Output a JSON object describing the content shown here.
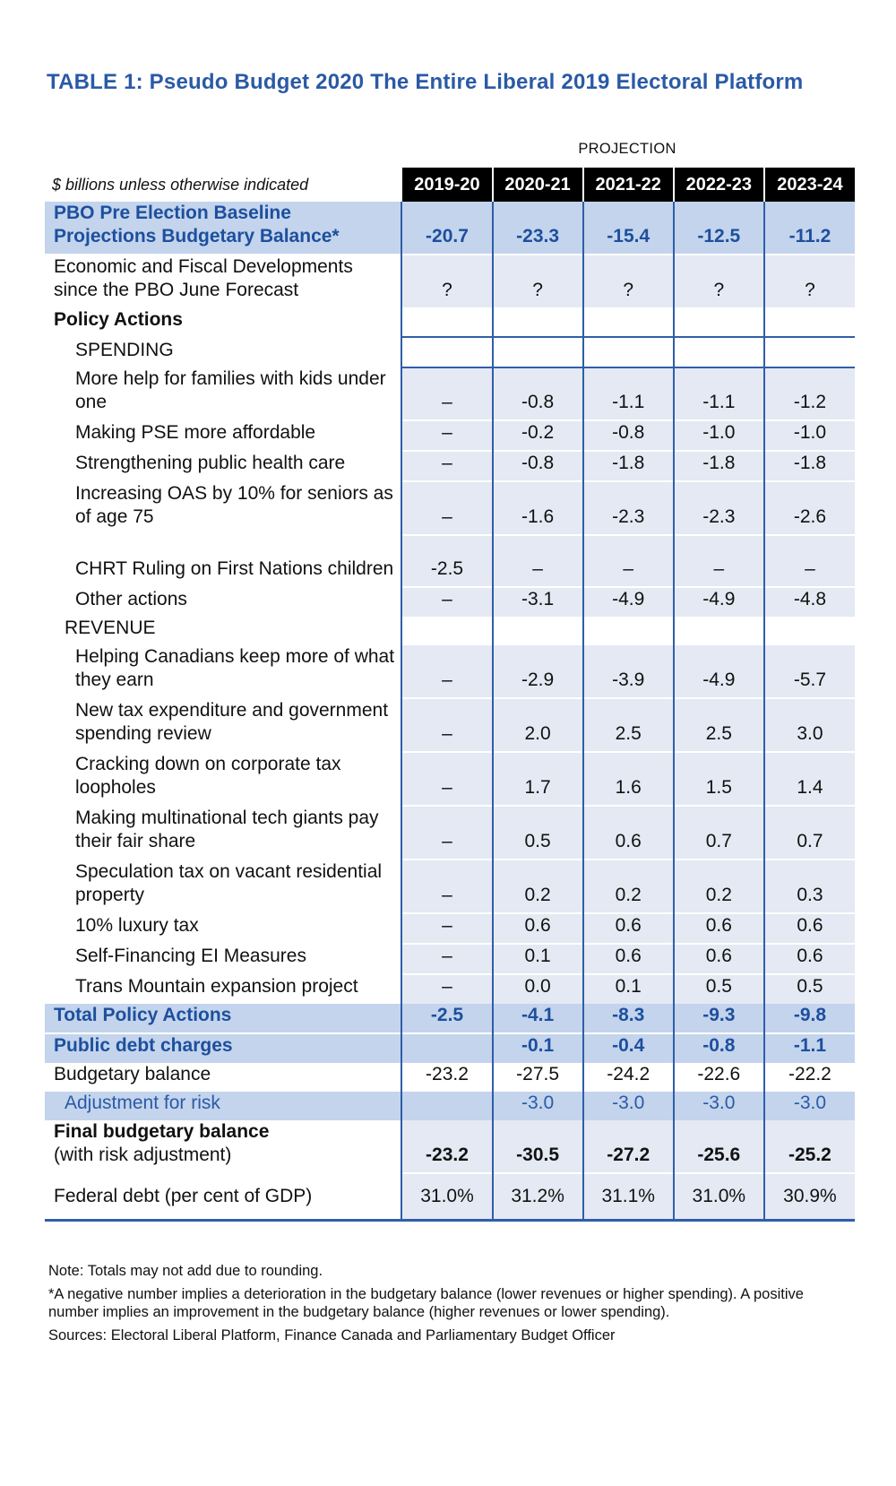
{
  "title": "TABLE 1: Pseudo Budget 2020 The Entire Liberal 2019 Electoral Platform",
  "projection_label": "PROJECTION",
  "units": "$ billions unless otherwise indicated",
  "years": [
    "2019-20",
    "2020-21",
    "2021-22",
    "2022-23",
    "2023-24"
  ],
  "rows": [
    {
      "label": "PBO Pre Election Baseline Projections Budgetary Balance*",
      "values": [
        "-20.7",
        "-23.3",
        "-15.4",
        "-12.5",
        "-11.2"
      ]
    },
    {
      "label": "Economic and Fiscal Developments since the PBO June Forecast",
      "values": [
        "?",
        "?",
        "?",
        "?",
        "?"
      ]
    },
    {
      "label": "Policy Actions",
      "values": [
        "",
        "",
        "",
        "",
        ""
      ]
    },
    {
      "label": "SPENDING",
      "values": [
        "",
        "",
        "",
        "",
        ""
      ]
    },
    {
      "label": "More help for families with kids under one",
      "values": [
        "–",
        "-0.8",
        "-1.1",
        "-1.1",
        "-1.2"
      ]
    },
    {
      "label": "Making PSE more affordable",
      "values": [
        "–",
        "-0.2",
        "-0.8",
        "-1.0",
        "-1.0"
      ]
    },
    {
      "label": "Strengthening public health care",
      "values": [
        "–",
        "-0.8",
        "-1.8",
        "-1.8",
        "-1.8"
      ]
    },
    {
      "label": "Increasing OAS by 10% for seniors as of age 75",
      "values": [
        "–",
        "-1.6",
        "-2.3",
        "-2.3",
        "-2.6"
      ]
    },
    {
      "label": "CHRT Ruling on First Nations children",
      "values": [
        "-2.5",
        "–",
        "–",
        "–",
        "–"
      ]
    },
    {
      "label": "Other actions",
      "values": [
        "–",
        "-3.1",
        "-4.9",
        "-4.9",
        "-4.8"
      ]
    },
    {
      "label": "REVENUE",
      "values": [
        "",
        "",
        "",
        "",
        ""
      ]
    },
    {
      "label": "Helping Canadians keep more of what they earn",
      "values": [
        "–",
        "-2.9",
        "-3.9",
        "-4.9",
        "-5.7"
      ]
    },
    {
      "label": "New tax expenditure and government spending review",
      "values": [
        "–",
        "2.0",
        "2.5",
        "2.5",
        "3.0"
      ]
    },
    {
      "label": "Cracking down on corporate tax loopholes",
      "values": [
        "–",
        "1.7",
        "1.6",
        "1.5",
        "1.4"
      ]
    },
    {
      "label": "Making multinational tech giants pay their fair share",
      "values": [
        "–",
        "0.5",
        "0.6",
        "0.7",
        "0.7"
      ]
    },
    {
      "label": "Speculation tax on vacant residential property",
      "values": [
        "–",
        "0.2",
        "0.2",
        "0.2",
        "0.3"
      ]
    },
    {
      "label": "10% luxury tax",
      "values": [
        "–",
        "0.6",
        "0.6",
        "0.6",
        "0.6"
      ]
    },
    {
      "label": "Self-Financing EI Measures",
      "values": [
        "–",
        "0.1",
        "0.6",
        "0.6",
        "0.6"
      ]
    },
    {
      "label": "Trans Mountain expansion project",
      "values": [
        "–",
        "0.0",
        "0.1",
        "0.5",
        "0.5"
      ]
    },
    {
      "label": "Total Policy Actions",
      "values": [
        "-2.5",
        "-4.1",
        "-8.3",
        "-9.3",
        "-9.8"
      ]
    },
    {
      "label": "Public debt charges",
      "values": [
        "",
        "-0.1",
        "-0.4",
        "-0.8",
        "-1.1"
      ]
    },
    {
      "label": "Budgetary balance",
      "values": [
        "-23.2",
        "-27.5",
        "-24.2",
        "-22.6",
        "-22.2"
      ]
    },
    {
      "label": "Adjustment for risk",
      "values": [
        "",
        "-3.0",
        "-3.0",
        "-3.0",
        "-3.0"
      ]
    },
    {
      "label": "Final budgetary balance",
      "label2": "(with risk adjustment)",
      "values": [
        "-23.2",
        "-30.5",
        "-27.2",
        "-25.6",
        "-25.2"
      ]
    },
    {
      "label": "Federal debt (per cent of GDP)",
      "values": [
        "31.0%",
        "31.2%",
        "31.1%",
        "31.0%",
        "30.9%"
      ]
    }
  ],
  "notes": [
    "Note: Totals may not add due to rounding.",
    "*A negative number implies a deterioration in the budgetary balance (lower revenues or higher spending). A positive number implies an improvement in the budgetary balance (higher revenues or lower spending).",
    "Sources: Electoral Liberal Platform, Finance Canada and Parliamentary Budget Officer"
  ]
}
